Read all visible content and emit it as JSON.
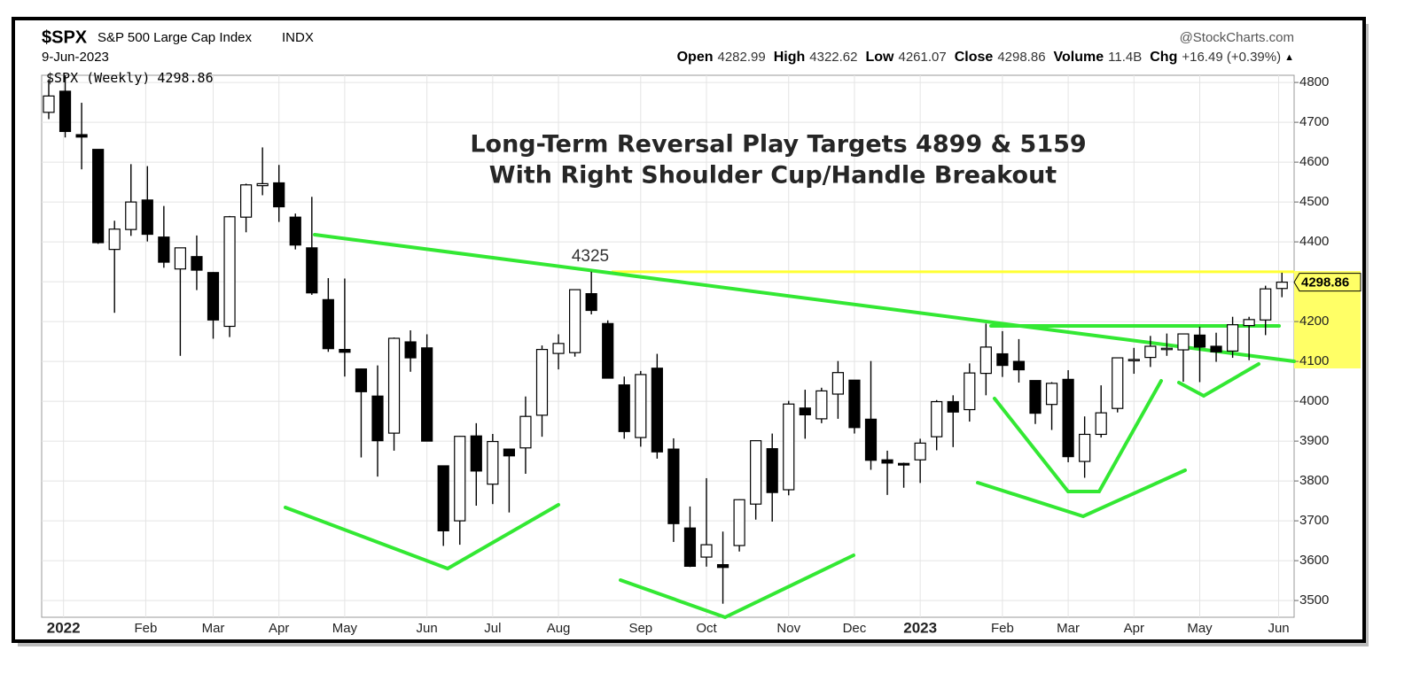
{
  "chart_data": {
    "type": "candlestick",
    "symbol": "$SPX",
    "symbol_name": "S&P 500 Large Cap Index",
    "exchange": "INDX",
    "date": "9-Jun-2023",
    "source": "@StockCharts.com",
    "quote_labels": [
      "Open",
      "High",
      "Low",
      "Close",
      "Volume",
      "Chg"
    ],
    "volume": "11.4B",
    "change": "+16.49 (+0.39%)",
    "change_arrow": "▲",
    "series_name": "$SPX (Weekly)",
    "title": "Long-Term Reversal Play Targets 4899 & 5159",
    "subtitle": "With Right Shoulder Cup/Handle Breakout",
    "level": {
      "label": "4325",
      "value": 4325,
      "color": "#ffff33"
    },
    "up_color": "#ffffff",
    "down_color": "#000000",
    "ylim": [
      3458,
      4818
    ],
    "yticks": [
      3500,
      3600,
      3700,
      3800,
      3900,
      4000,
      4100,
      4200,
      4300,
      4400,
      4500,
      4600,
      4700,
      4800
    ],
    "grid": true,
    "xticks": [
      {
        "value": 0.9,
        "label": "2022"
      },
      {
        "value": 5.9,
        "label": "Feb"
      },
      {
        "value": 10,
        "label": "Mar"
      },
      {
        "value": 14,
        "label": "Apr"
      },
      {
        "value": 18,
        "label": "May"
      },
      {
        "value": 23,
        "label": "Jun"
      },
      {
        "value": 27,
        "label": "Jul"
      },
      {
        "value": 31,
        "label": "Aug"
      },
      {
        "value": 36,
        "label": "Sep"
      },
      {
        "value": 40,
        "label": "Oct"
      },
      {
        "value": 45,
        "label": "Nov"
      },
      {
        "value": 49,
        "label": "Dec"
      },
      {
        "value": 53,
        "label": "2023"
      },
      {
        "value": 58,
        "label": "Feb"
      },
      {
        "value": 62,
        "label": "Mar"
      },
      {
        "value": 66,
        "label": "Apr"
      },
      {
        "value": 70,
        "label": "May"
      },
      {
        "value": 74.8,
        "label": "Jun"
      }
    ],
    "ohlc": [
      [
        4725,
        4808,
        4708,
        4766
      ],
      [
        4778,
        4818,
        4662,
        4677
      ],
      [
        4669,
        4749,
        4582,
        4663
      ],
      [
        4632,
        4632,
        4395,
        4398
      ],
      [
        4381,
        4453,
        4222,
        4432
      ],
      [
        4431,
        4595,
        4415,
        4500
      ],
      [
        4505,
        4590,
        4401,
        4419
      ],
      [
        4412,
        4490,
        4335,
        4349
      ],
      [
        4332,
        4385,
        4114,
        4385
      ],
      [
        4363,
        4416,
        4279,
        4329
      ],
      [
        4323,
        4324,
        4157,
        4204
      ],
      [
        4188,
        4465,
        4161,
        4463
      ],
      [
        4462,
        4546,
        4424,
        4543
      ],
      [
        4541,
        4637,
        4517,
        4546
      ],
      [
        4548,
        4593,
        4450,
        4488
      ],
      [
        4462,
        4471,
        4381,
        4392
      ],
      [
        4385,
        4513,
        4267,
        4272
      ],
      [
        4255,
        4309,
        4124,
        4132
      ],
      [
        4130,
        4308,
        4062,
        4123
      ],
      [
        4081,
        4082,
        3859,
        4024
      ],
      [
        4013,
        4090,
        3811,
        3901
      ],
      [
        3920,
        4160,
        3876,
        4158
      ],
      [
        4149,
        4178,
        4074,
        4109
      ],
      [
        4134,
        4168,
        3900,
        3900
      ],
      [
        3838,
        3838,
        3637,
        3675
      ],
      [
        3700,
        3913,
        3640,
        3912
      ],
      [
        3913,
        3945,
        3738,
        3825
      ],
      [
        3792,
        3918,
        3742,
        3899
      ],
      [
        3880,
        3880,
        3721,
        3863
      ],
      [
        3883,
        4012,
        3818,
        3962
      ],
      [
        3965,
        4140,
        3911,
        4130
      ],
      [
        4120,
        4168,
        4080,
        4145
      ],
      [
        4122,
        4281,
        4112,
        4280
      ],
      [
        4270,
        4325,
        4218,
        4228
      ],
      [
        4195,
        4203,
        4057,
        4058
      ],
      [
        4041,
        4062,
        3906,
        3924
      ],
      [
        3909,
        4076,
        3886,
        4067
      ],
      [
        4083,
        4119,
        3856,
        3873
      ],
      [
        3880,
        3907,
        3647,
        3693
      ],
      [
        3682,
        3736,
        3584,
        3586
      ],
      [
        3609,
        3807,
        3585,
        3640
      ],
      [
        3590,
        3673,
        3492,
        3583
      ],
      [
        3638,
        3754,
        3623,
        3753
      ],
      [
        3742,
        3902,
        3703,
        3901
      ],
      [
        3881,
        3919,
        3698,
        3771
      ],
      [
        3778,
        4001,
        3764,
        3993
      ],
      [
        3983,
        4029,
        3906,
        3966
      ],
      [
        3956,
        4034,
        3945,
        4026
      ],
      [
        4018,
        4101,
        3956,
        4072
      ],
      [
        4053,
        4053,
        3919,
        3934
      ],
      [
        3955,
        4101,
        3828,
        3852
      ],
      [
        3853,
        3876,
        3765,
        3845
      ],
      [
        3844,
        3846,
        3783,
        3840
      ],
      [
        3853,
        3906,
        3795,
        3895
      ],
      [
        3911,
        4003,
        3877,
        3999
      ],
      [
        3999,
        4015,
        3885,
        3973
      ],
      [
        3979,
        4095,
        3949,
        4071
      ],
      [
        4070,
        4195,
        4015,
        4136
      ],
      [
        4119,
        4176,
        4061,
        4090
      ],
      [
        4100,
        4156,
        4047,
        4079
      ],
      [
        4052,
        4052,
        3943,
        3970
      ],
      [
        3992,
        4048,
        3928,
        4045
      ],
      [
        4055,
        4078,
        3847,
        3861
      ],
      [
        3849,
        3962,
        3808,
        3917
      ],
      [
        3917,
        4040,
        3909,
        3971
      ],
      [
        3982,
        4110,
        3972,
        4109
      ],
      [
        4102,
        4134,
        4069,
        4105
      ],
      [
        4110,
        4164,
        4086,
        4138
      ],
      [
        4131,
        4170,
        4114,
        4133
      ],
      [
        4129,
        4170,
        4049,
        4169
      ],
      [
        4166,
        4187,
        4048,
        4136
      ],
      [
        4138,
        4172,
        4099,
        4124
      ],
      [
        4126,
        4212,
        4109,
        4192
      ],
      [
        4190,
        4212,
        4103,
        4205
      ],
      [
        4204,
        4290,
        4166,
        4282
      ],
      [
        4282.99,
        4322.62,
        4261.07,
        4298.86
      ]
    ]
  }
}
